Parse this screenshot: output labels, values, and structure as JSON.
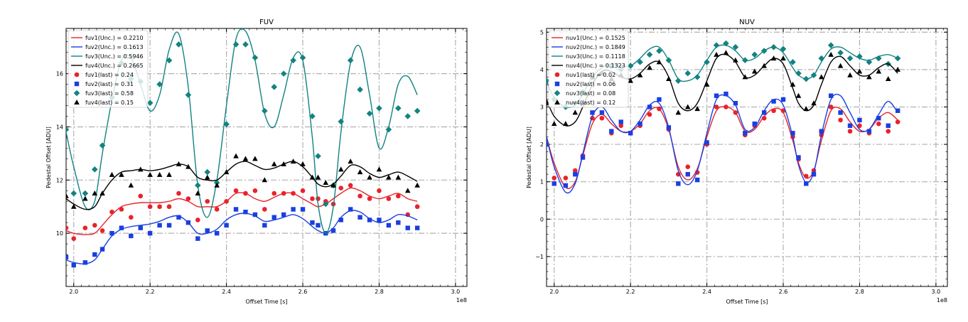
{
  "chart_data": [
    {
      "type": "scatter",
      "title": "FUV",
      "xlabel": "Offset Time [s]",
      "ylabel": "Pedestal Offset [ADU]",
      "x_multiplier_label": "1e8",
      "xlim": [
        1.98,
        3.03
      ],
      "ylim": [
        8.0,
        17.7
      ],
      "xticks": [
        2.0,
        2.2,
        2.4,
        2.6,
        2.8,
        3.0
      ],
      "xticklabels": [
        "2.0",
        "2.2",
        "2.4",
        "2.6",
        "2.8",
        "3.0"
      ],
      "yticks": [
        10,
        12,
        14,
        16
      ],
      "yticklabels": [
        "10",
        "12",
        "14",
        "16"
      ],
      "grid": true,
      "legend_position": "top-left",
      "legend": [
        "fuv1(Unc.) = 0.2210",
        "fuv2(Unc.) = 0.1613",
        "fuv3(Unc.) = 0.5946",
        "fuv4(Unc.) = 0.2665",
        "fuv1(last) = 0.24",
        "fuv2(last) = 0.31",
        "fuv3(last) = 0.58",
        "fuv4(last) = 0.15"
      ],
      "x": [
        1.98,
        2.0,
        2.03,
        2.055,
        2.075,
        2.1,
        2.125,
        2.15,
        2.175,
        2.2,
        2.225,
        2.25,
        2.275,
        2.3,
        2.325,
        2.35,
        2.375,
        2.4,
        2.425,
        2.45,
        2.475,
        2.5,
        2.525,
        2.55,
        2.575,
        2.6,
        2.625,
        2.64,
        2.66,
        2.68,
        2.7,
        2.725,
        2.75,
        2.775,
        2.8,
        2.825,
        2.85,
        2.875,
        2.9
      ],
      "series": [
        {
          "name": "fuv1",
          "color": "#e8232b",
          "marker": "circle",
          "points": [
            10.2,
            9.8,
            10.2,
            10.3,
            10.1,
            10.8,
            10.9,
            10.6,
            11.4,
            11.0,
            11.0,
            11.0,
            11.5,
            11.3,
            10.5,
            11.2,
            10.9,
            11.2,
            11.6,
            11.5,
            11.6,
            10.9,
            11.5,
            11.5,
            11.5,
            11.6,
            11.3,
            11.3,
            11.2,
            11.1,
            11.7,
            11.8,
            11.4,
            11.3,
            11.6,
            11.3,
            11.4,
            10.7,
            11.0
          ],
          "fit": [
            10.1,
            10.0,
            9.95,
            10.0,
            10.3,
            10.7,
            11.0,
            11.1,
            11.15,
            11.15,
            11.15,
            11.2,
            11.3,
            11.2,
            11.0,
            11.0,
            11.0,
            11.2,
            11.5,
            11.5,
            11.3,
            11.2,
            11.35,
            11.5,
            11.5,
            11.3,
            11.1,
            11.0,
            11.1,
            11.3,
            11.5,
            11.7,
            11.6,
            11.4,
            11.3,
            11.4,
            11.5,
            11.3,
            11.2
          ]
        },
        {
          "name": "fuv2",
          "color": "#1a3fe0",
          "marker": "square",
          "points": [
            9.1,
            8.8,
            8.9,
            9.2,
            9.4,
            10.0,
            10.2,
            9.9,
            10.2,
            10.0,
            10.3,
            10.3,
            10.6,
            10.4,
            9.8,
            10.1,
            10.0,
            10.3,
            10.9,
            10.8,
            10.7,
            10.3,
            10.6,
            10.7,
            10.9,
            10.9,
            10.4,
            10.3,
            10.0,
            10.1,
            10.5,
            10.9,
            10.6,
            10.5,
            10.5,
            10.3,
            10.4,
            10.2,
            10.2
          ],
          "fit": [
            9.0,
            8.9,
            8.85,
            9.0,
            9.4,
            9.9,
            10.15,
            10.25,
            10.3,
            10.35,
            10.45,
            10.6,
            10.65,
            10.4,
            10.0,
            10.0,
            10.15,
            10.5,
            10.7,
            10.75,
            10.65,
            10.45,
            10.5,
            10.6,
            10.7,
            10.55,
            10.25,
            10.1,
            10.0,
            10.2,
            10.6,
            10.85,
            10.8,
            10.55,
            10.4,
            10.5,
            10.7,
            10.65,
            10.5
          ]
        },
        {
          "name": "fuv3",
          "color": "#138282",
          "marker": "diamond",
          "points": [
            13.9,
            11.5,
            11.5,
            12.4,
            13.3,
            15.1,
            16.4,
            15.8,
            15.7,
            14.9,
            15.6,
            16.5,
            17.1,
            15.2,
            11.8,
            12.3,
            11.9,
            14.1,
            17.1,
            17.1,
            16.6,
            14.6,
            15.5,
            16.0,
            16.5,
            16.6,
            14.4,
            12.9,
            11.1,
            11.8,
            14.2,
            16.5,
            15.4,
            14.5,
            14.7,
            13.9,
            14.7,
            14.4,
            14.6
          ],
          "fit": [
            13.8,
            12.5,
            11.0,
            11.2,
            13.0,
            15.0,
            16.5,
            16.6,
            15.6,
            14.6,
            15.2,
            16.9,
            17.5,
            15.5,
            11.8,
            10.6,
            12.0,
            14.8,
            17.3,
            17.6,
            16.5,
            14.5,
            14.0,
            15.2,
            16.6,
            16.5,
            13.6,
            11.1,
            10.0,
            11.0,
            13.8,
            16.4,
            17.0,
            15.2,
            13.2,
            14.0,
            15.6,
            15.9,
            15.2
          ]
        },
        {
          "name": "fuv4",
          "color": "#000000",
          "marker": "triangle",
          "points": [
            11.4,
            11.0,
            11.3,
            11.5,
            11.5,
            12.2,
            12.2,
            11.8,
            12.4,
            12.2,
            12.2,
            12.2,
            12.6,
            12.5,
            11.5,
            12.1,
            11.8,
            12.3,
            12.9,
            12.8,
            12.8,
            12.0,
            12.6,
            12.6,
            12.7,
            12.6,
            12.1,
            12.1,
            11.9,
            11.8,
            12.4,
            12.7,
            12.3,
            12.1,
            12.4,
            12.1,
            12.1,
            11.6,
            11.8
          ],
          "fit": [
            11.3,
            11.1,
            10.9,
            11.0,
            11.5,
            12.0,
            12.3,
            12.35,
            12.4,
            12.35,
            12.4,
            12.5,
            12.6,
            12.5,
            12.1,
            12.0,
            12.0,
            12.3,
            12.6,
            12.7,
            12.55,
            12.4,
            12.45,
            12.6,
            12.7,
            12.5,
            12.1,
            11.85,
            11.75,
            11.85,
            12.15,
            12.55,
            12.5,
            12.25,
            12.1,
            12.2,
            12.3,
            12.15,
            11.95
          ]
        }
      ]
    },
    {
      "type": "scatter",
      "title": "NUV",
      "xlabel": "Offset Time [s]",
      "ylabel": "Pedestal Offset [ADU]",
      "x_multiplier_label": "1e8",
      "xlim": [
        1.98,
        3.03
      ],
      "ylim": [
        -1.8,
        5.1
      ],
      "xticks": [
        2.0,
        2.2,
        2.4,
        2.6,
        2.8,
        3.0
      ],
      "xticklabels": [
        "2.0",
        "2.2",
        "2.4",
        "2.6",
        "2.8",
        "3.0"
      ],
      "yticks": [
        -1,
        0,
        1,
        2,
        3,
        4,
        5
      ],
      "yticklabels": [
        "−1",
        "0",
        "1",
        "2",
        "3",
        "4",
        "5"
      ],
      "grid": true,
      "legend_position": "top-left",
      "legend": [
        "nuv1(Unc.) = 0.1525",
        "nuv2(Unc.) = 0.1849",
        "nuv3(Unc.) = 0.1118",
        "nuv4(Unc.) = 0.1323",
        "nuv1(last) = 0.02",
        "nuv2(last) = 0.06",
        "nuv3(last) = 0.08",
        "nuv4(last) = 0.12"
      ],
      "x": [
        1.98,
        2.0,
        2.03,
        2.055,
        2.075,
        2.1,
        2.125,
        2.15,
        2.175,
        2.2,
        2.225,
        2.25,
        2.275,
        2.3,
        2.325,
        2.35,
        2.375,
        2.4,
        2.425,
        2.45,
        2.475,
        2.5,
        2.525,
        2.55,
        2.575,
        2.6,
        2.625,
        2.64,
        2.66,
        2.68,
        2.7,
        2.725,
        2.75,
        2.775,
        2.8,
        2.825,
        2.85,
        2.875,
        2.9
      ],
      "series": [
        {
          "name": "nuv1",
          "color": "#e8232b",
          "marker": "circle",
          "points": [
            2.0,
            1.1,
            1.1,
            1.3,
            1.7,
            2.7,
            2.7,
            2.3,
            2.5,
            2.3,
            2.5,
            2.8,
            2.95,
            2.4,
            1.2,
            1.4,
            1.25,
            2.0,
            3.0,
            3.0,
            2.85,
            2.25,
            2.5,
            2.7,
            2.9,
            2.9,
            2.2,
            1.6,
            1.15,
            1.3,
            2.25,
            3.0,
            2.65,
            2.35,
            2.5,
            2.3,
            2.55,
            2.35,
            2.6
          ],
          "fit": [
            2.2,
            1.5,
            0.85,
            1.0,
            1.7,
            2.55,
            2.8,
            2.55,
            2.35,
            2.35,
            2.55,
            2.9,
            2.95,
            2.4,
            1.4,
            1.05,
            1.35,
            2.2,
            2.9,
            3.0,
            2.85,
            2.35,
            2.4,
            2.75,
            2.95,
            2.85,
            2.1,
            1.5,
            1.1,
            1.3,
            2.1,
            2.9,
            2.95,
            2.6,
            2.35,
            2.4,
            2.7,
            2.85,
            2.65
          ]
        },
        {
          "name": "nuv2",
          "color": "#1a3fe0",
          "marker": "square",
          "points": [
            2.0,
            0.95,
            0.9,
            1.2,
            1.65,
            2.85,
            2.85,
            2.35,
            2.6,
            2.3,
            2.55,
            3.0,
            3.2,
            2.45,
            0.95,
            1.2,
            1.05,
            2.05,
            3.3,
            3.35,
            3.1,
            2.3,
            2.55,
            2.85,
            3.15,
            3.2,
            2.3,
            1.65,
            0.95,
            1.2,
            2.35,
            3.3,
            2.85,
            2.5,
            2.65,
            2.35,
            2.7,
            2.5,
            2.9
          ],
          "fit": [
            2.2,
            1.4,
            0.72,
            0.95,
            1.75,
            2.75,
            3.0,
            2.65,
            2.35,
            2.35,
            2.65,
            3.05,
            3.1,
            2.45,
            1.3,
            0.92,
            1.3,
            2.3,
            3.2,
            3.3,
            3.05,
            2.4,
            2.45,
            2.9,
            3.2,
            3.05,
            2.2,
            1.45,
            0.98,
            1.25,
            2.25,
            3.2,
            3.3,
            2.85,
            2.4,
            2.4,
            2.8,
            3.15,
            2.85
          ]
        },
        {
          "name": "nuv3",
          "color": "#138282",
          "marker": "diamond",
          "points": [
            3.7,
            3.2,
            3.0,
            3.1,
            3.4,
            3.8,
            3.9,
            4.1,
            4.0,
            4.1,
            4.2,
            4.4,
            4.5,
            4.25,
            3.7,
            3.9,
            3.8,
            4.2,
            4.65,
            4.7,
            4.6,
            4.25,
            4.4,
            4.5,
            4.6,
            4.55,
            4.2,
            3.9,
            3.75,
            3.85,
            4.3,
            4.65,
            4.45,
            4.3,
            4.35,
            4.2,
            4.3,
            4.15,
            4.3
          ],
          "fit": [
            3.7,
            3.25,
            3.0,
            3.05,
            3.35,
            3.8,
            4.05,
            4.15,
            4.1,
            4.1,
            4.3,
            4.55,
            4.6,
            4.25,
            3.75,
            3.7,
            3.85,
            4.25,
            4.6,
            4.65,
            4.5,
            4.25,
            4.3,
            4.5,
            4.6,
            4.45,
            4.05,
            3.85,
            3.75,
            3.85,
            4.2,
            4.55,
            4.6,
            4.45,
            4.3,
            4.25,
            4.35,
            4.4,
            4.3
          ]
        },
        {
          "name": "nuv4",
          "color": "#000000",
          "marker": "triangle",
          "points": [
            3.1,
            2.55,
            2.55,
            2.85,
            3.1,
            3.8,
            3.9,
            3.75,
            3.85,
            3.7,
            3.85,
            4.05,
            4.2,
            3.75,
            2.85,
            3.0,
            2.95,
            3.6,
            4.4,
            4.45,
            4.25,
            3.8,
            3.95,
            4.1,
            4.3,
            4.3,
            3.6,
            3.3,
            2.95,
            3.1,
            3.8,
            4.4,
            4.1,
            3.85,
            3.95,
            3.8,
            3.95,
            3.75,
            4.0
          ],
          "fit": [
            3.2,
            2.75,
            2.5,
            2.6,
            3.0,
            3.6,
            3.95,
            3.95,
            3.8,
            3.75,
            3.9,
            4.15,
            4.2,
            3.8,
            3.1,
            2.9,
            3.1,
            3.7,
            4.3,
            4.4,
            4.2,
            3.8,
            3.85,
            4.1,
            4.3,
            4.15,
            3.5,
            3.1,
            2.9,
            3.05,
            3.6,
            4.2,
            4.35,
            4.1,
            3.85,
            3.85,
            4.05,
            4.15,
            3.9
          ]
        }
      ]
    }
  ]
}
